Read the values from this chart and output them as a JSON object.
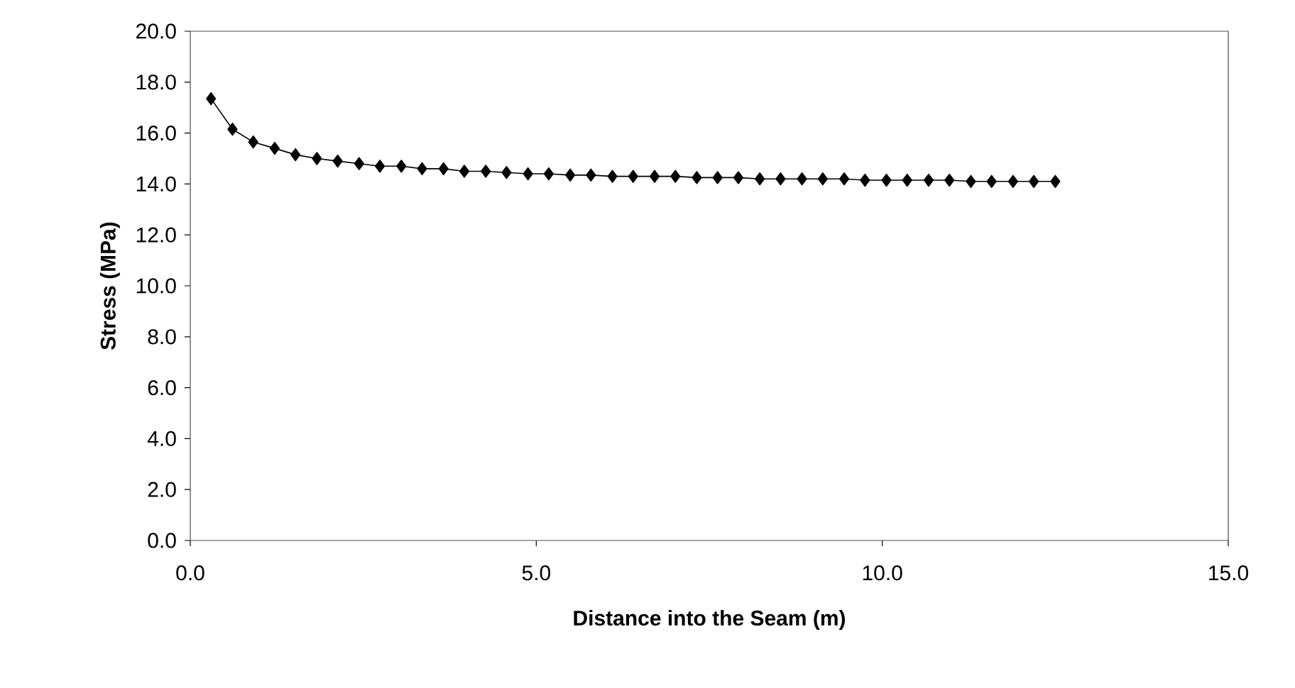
{
  "chart_data": {
    "type": "line",
    "xlabel": "Distance into the Seam (m)",
    "ylabel": "Stress  (MPa)",
    "x": [
      0.3,
      0.61,
      0.91,
      1.22,
      1.52,
      1.83,
      2.13,
      2.44,
      2.74,
      3.05,
      3.35,
      3.66,
      3.96,
      4.27,
      4.57,
      4.88,
      5.18,
      5.49,
      5.79,
      6.1,
      6.4,
      6.71,
      7.01,
      7.32,
      7.62,
      7.92,
      8.23,
      8.53,
      8.84,
      9.14,
      9.45,
      9.75,
      10.06,
      10.36,
      10.67,
      10.97,
      11.28,
      11.58,
      11.89,
      12.19,
      12.5
    ],
    "series": [
      {
        "color": "#000000",
        "values": [
          17.35,
          16.15,
          15.65,
          15.4,
          15.15,
          15.0,
          14.9,
          14.8,
          14.7,
          14.7,
          14.6,
          14.6,
          14.5,
          14.5,
          14.45,
          14.4,
          14.4,
          14.35,
          14.35,
          14.3,
          14.3,
          14.3,
          14.3,
          14.25,
          14.25,
          14.25,
          14.2,
          14.2,
          14.2,
          14.2,
          14.2,
          14.15,
          14.15,
          14.15,
          14.15,
          14.15,
          14.1,
          14.1,
          14.1,
          14.1,
          14.1
        ]
      }
    ],
    "xlim": [
      0,
      15
    ],
    "ylim": [
      0,
      20
    ],
    "xticks": [
      {
        "value": 0,
        "label": "0.0"
      },
      {
        "value": 5,
        "label": "5.0"
      },
      {
        "value": 10,
        "label": "10.0"
      },
      {
        "value": 15,
        "label": "15.0"
      }
    ],
    "yticks": [
      {
        "value": 0,
        "label": "0.0"
      },
      {
        "value": 2,
        "label": "2.0"
      },
      {
        "value": 4,
        "label": "4.0"
      },
      {
        "value": 6,
        "label": "6.0"
      },
      {
        "value": 8,
        "label": "8.0"
      },
      {
        "value": 10,
        "label": "10.0"
      },
      {
        "value": 12,
        "label": "12.0"
      },
      {
        "value": 14,
        "label": "14.0"
      },
      {
        "value": 16,
        "label": "16.0"
      },
      {
        "value": 18,
        "label": "18.0"
      },
      {
        "value": 20,
        "label": "20.0"
      }
    ],
    "marker": "diamond",
    "line_style": "solid"
  }
}
